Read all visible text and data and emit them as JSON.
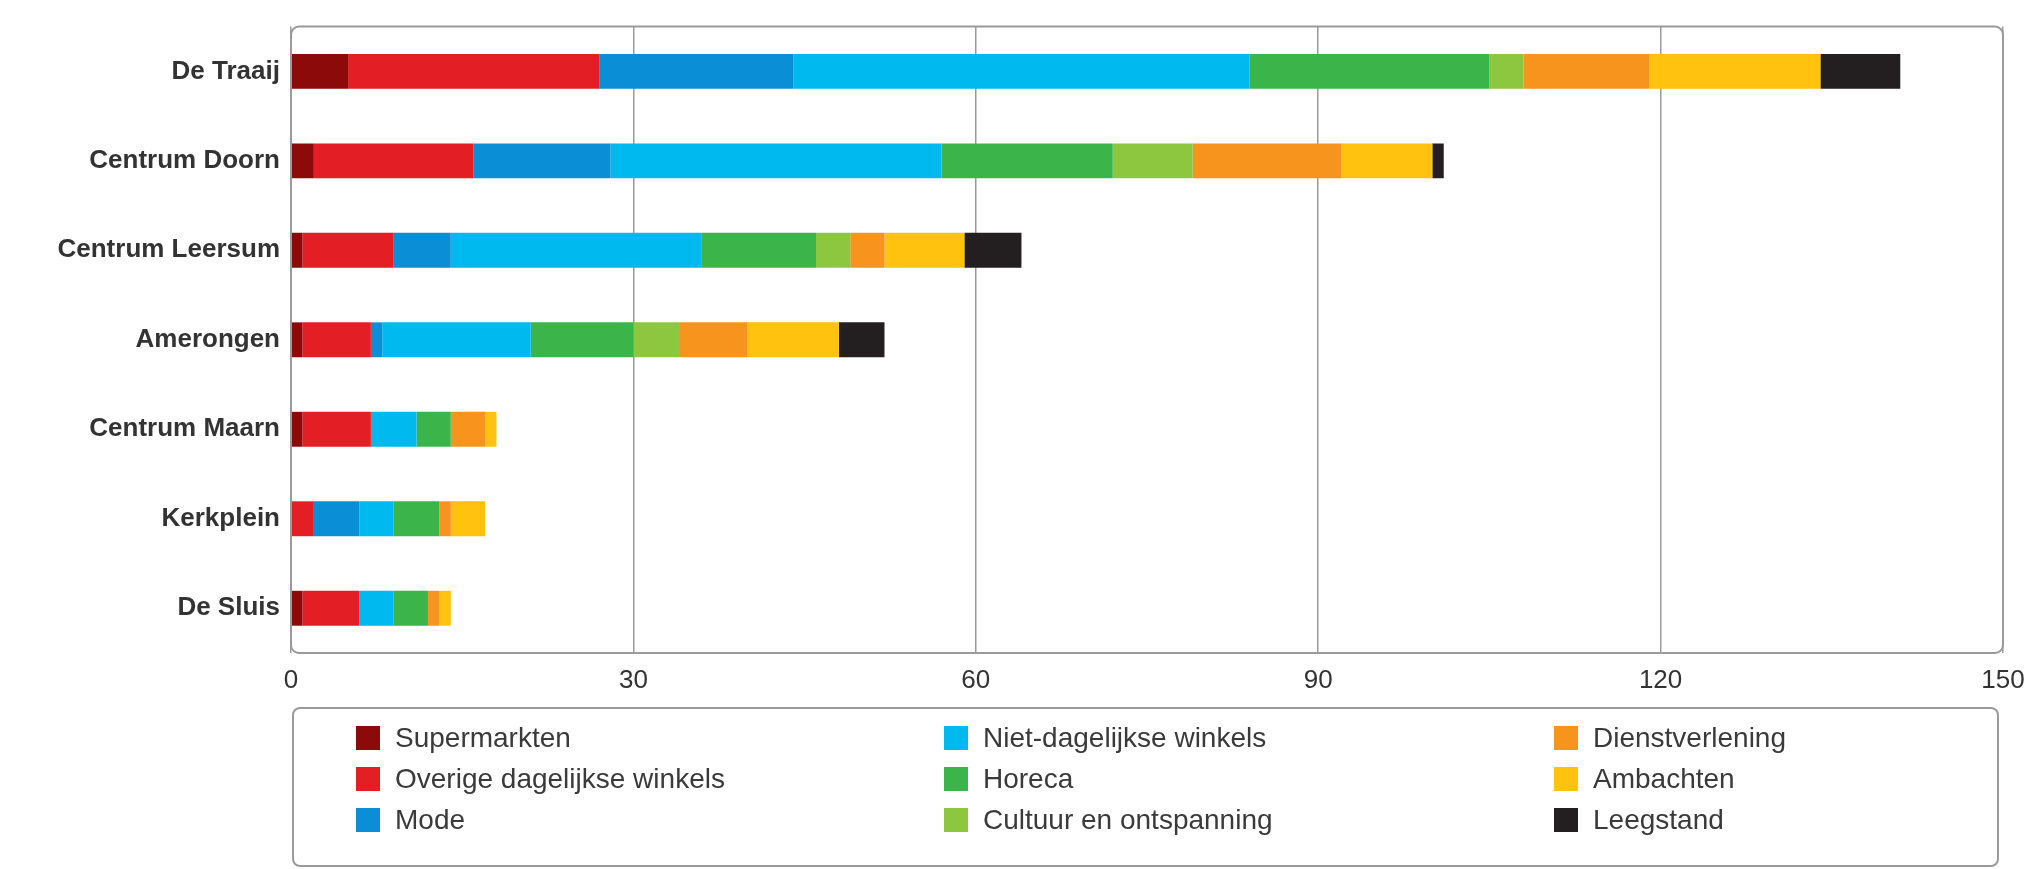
{
  "chart_data": {
    "type": "bar",
    "orientation": "horizontal",
    "stacked": true,
    "categories": [
      "De Traaij",
      "Centrum Doorn",
      "Centrum Leersum",
      "Amerongen",
      "Centrum Maarn",
      "Kerkplein",
      "De Sluis"
    ],
    "series": [
      {
        "name": "Supermarkten",
        "color": "#8c0a0a",
        "values": [
          5,
          2,
          1,
          1,
          1,
          0,
          1
        ]
      },
      {
        "name": "Overige dagelijkse winkels",
        "color": "#e31e24",
        "values": [
          22,
          14,
          8,
          6,
          6,
          2,
          5
        ]
      },
      {
        "name": "Mode",
        "color": "#0a8fd6",
        "values": [
          17,
          12,
          5,
          1,
          0,
          4,
          0
        ]
      },
      {
        "name": "Niet-dagelijkse winkels",
        "color": "#00b9ef",
        "values": [
          40,
          29,
          22,
          13,
          4,
          3,
          3
        ]
      },
      {
        "name": "Horeca",
        "color": "#3bb54a",
        "values": [
          21,
          15,
          10,
          9,
          3,
          4,
          3
        ]
      },
      {
        "name": "Cultuur en ontspanning",
        "color": "#8dc63f",
        "values": [
          3,
          7,
          3,
          4,
          0,
          0,
          0
        ]
      },
      {
        "name": "Dienstverlening",
        "color": "#f7941d",
        "values": [
          11,
          13,
          3,
          6,
          3,
          1,
          1
        ]
      },
      {
        "name": "Ambachten",
        "color": "#ffc20e",
        "values": [
          15,
          8,
          7,
          8,
          1,
          3,
          1
        ]
      },
      {
        "name": "Leegstand",
        "color": "#231f20",
        "values": [
          7,
          1,
          5,
          4,
          0,
          0,
          0
        ]
      }
    ],
    "xlim": [
      0,
      150
    ],
    "xticks": [
      0,
      30,
      60,
      90,
      120,
      150
    ],
    "grid": "x",
    "legend": "bottom"
  }
}
